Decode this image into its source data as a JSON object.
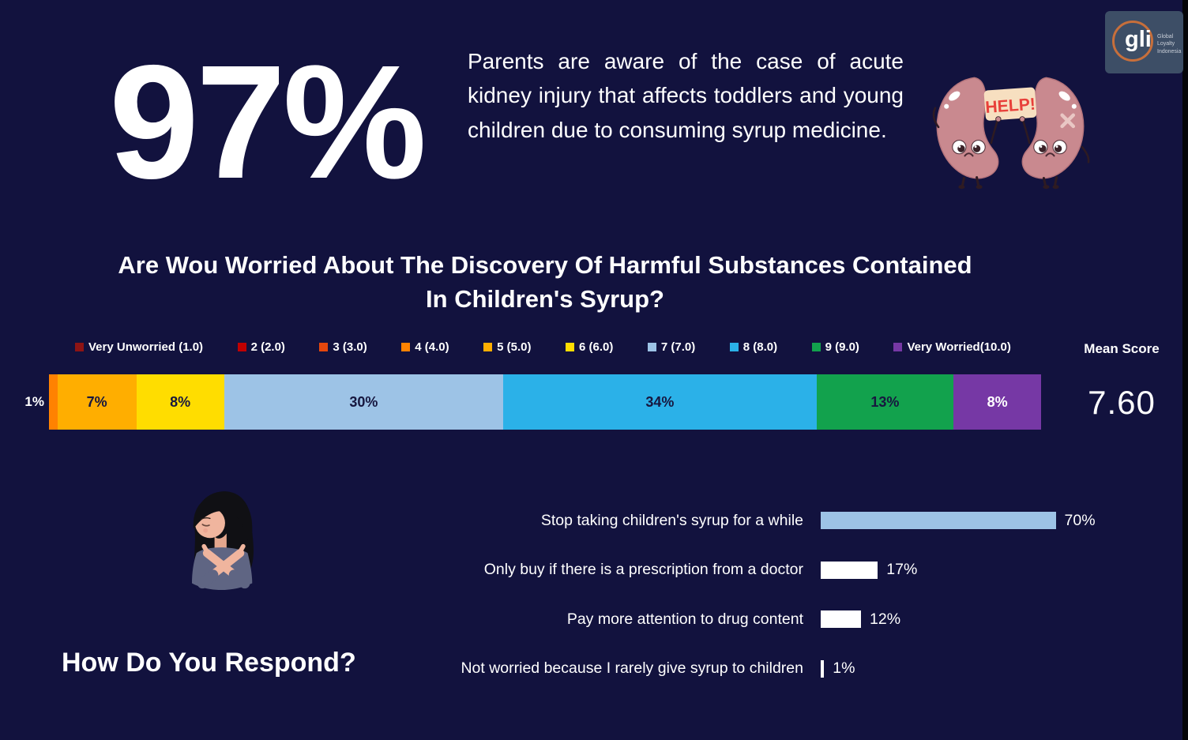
{
  "page": {
    "background_color": "#12123E"
  },
  "header": {
    "headline_number": "97%",
    "paragraph": "Parents are aware of the case of acute kidney injury that affects toddlers and young children due to consuming syrup medicine.",
    "help_sign_text": "HELP!",
    "logo": {
      "monogram": "gli",
      "lines": [
        "Global",
        "Loyalty",
        "Indonesia"
      ]
    }
  },
  "chart_data": [
    {
      "type": "bar",
      "stacked": true,
      "title_line1": "Are Wou Worried About The Discovery Of Harmful Substances Contained",
      "title_line2": "In Children's Syrup?",
      "legend_position": "top",
      "legend": [
        {
          "label": "Very Unworried (1.0)",
          "color": "#8E1414"
        },
        {
          "label": "2 (2.0)",
          "color": "#C00000"
        },
        {
          "label": "3 (3.0)",
          "color": "#E5470D"
        },
        {
          "label": "4 (4.0)",
          "color": "#FF8201"
        },
        {
          "label": "5 (5.0)",
          "color": "#FFAE00"
        },
        {
          "label": "6 (6.0)",
          "color": "#FFDD00"
        },
        {
          "label": "7 (7.0)",
          "color": "#9DC3E6"
        },
        {
          "label": "8 (8.0)",
          "color": "#2BB1E8"
        },
        {
          "label": "9 (9.0)",
          "color": "#12A24D"
        },
        {
          "label": "Very Worried(10.0)",
          "color": "#7638A5"
        }
      ],
      "segments": [
        {
          "legend_label": "4 (4.0)",
          "value": 1,
          "display": "1%",
          "color": "#FF8201",
          "text_color": "#FFFFFF",
          "label_outside": true
        },
        {
          "legend_label": "5 (5.0)",
          "value": 7,
          "display": "7%",
          "color": "#FFAE00",
          "text_color": "#17173F"
        },
        {
          "legend_label": "6 (6.0)",
          "value": 8,
          "display": "8%",
          "color": "#FFDD00",
          "text_color": "#17173F"
        },
        {
          "legend_label": "7 (7.0)",
          "value": 30,
          "display": "30%",
          "color": "#9DC3E6",
          "text_color": "#17173F"
        },
        {
          "legend_label": "8 (8.0)",
          "value": 34,
          "display": "34%",
          "color": "#2BB1E8",
          "text_color": "#17173F"
        },
        {
          "legend_label": "9 (9.0)",
          "value": 13,
          "display": "13%",
          "color": "#12A24D",
          "text_color": "#17173F"
        },
        {
          "legend_label": "Very Worried(10.0)",
          "value": 8,
          "display": "8%",
          "color": "#7638A5",
          "text_color": "#FFFFFF"
        }
      ],
      "mean_score_label": "Mean Score",
      "mean_score": "7.60"
    },
    {
      "type": "bar",
      "orientation": "horizontal",
      "title": "How Do You Respond?",
      "categories": [
        "Stop taking children's syrup for a while",
        "Only buy if there is a prescription from a doctor",
        "Pay more attention to drug content",
        "Not worried because I rarely give syrup to children"
      ],
      "values": [
        70,
        17,
        12,
        1
      ],
      "items": [
        {
          "label": "Stop taking children's syrup for a while",
          "value": 70,
          "display": "70%",
          "color": "#9DC3E6"
        },
        {
          "label": "Only buy if there is a prescription from a doctor",
          "value": 17,
          "display": "17%",
          "color": "#FFFFFF"
        },
        {
          "label": "Pay more attention to drug content",
          "value": 12,
          "display": "12%",
          "color": "#FFFFFF"
        },
        {
          "label": "Not worried because I rarely give syrup to children",
          "value": 1,
          "display": "1%",
          "color": "#FFFFFF"
        }
      ]
    }
  ]
}
